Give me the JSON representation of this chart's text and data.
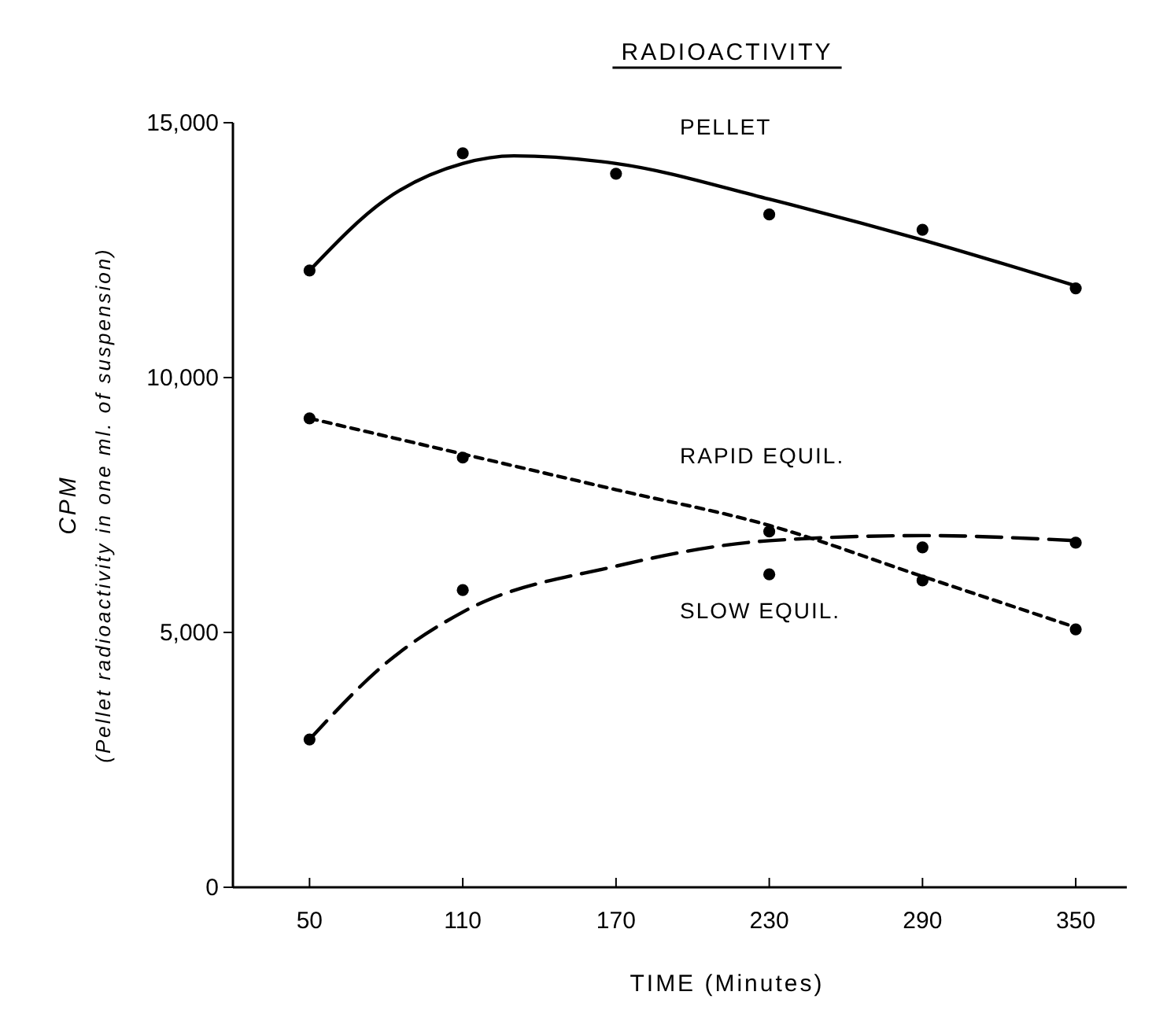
{
  "chart_data": {
    "type": "line",
    "title": "RADIOACTIVITY",
    "xlabel": "TIME  (Minutes)",
    "ylabel": "CPM\n(Pellet radioactivity in one ml. of suspension)",
    "xlim": [
      20,
      370
    ],
    "xticks": [
      50,
      110,
      170,
      230,
      290,
      350
    ],
    "ylim": [
      0,
      15000
    ],
    "yticks": [
      0,
      {
        "value": 5000,
        "label": "5,000"
      },
      {
        "value": 10000,
        "label": "10,000"
      },
      {
        "value": 15000,
        "label": "15,000"
      }
    ],
    "grid": false,
    "series": [
      {
        "name": "PELLET",
        "color": "#000000",
        "line_style": "solid",
        "marker": "none",
        "x": [
          50,
          80,
          110,
          130,
          170,
          230,
          290,
          350
        ],
        "values": [
          12100,
          13500,
          14200,
          14350,
          14200,
          13500,
          12700,
          11800
        ]
      },
      {
        "name": "RAPID EQUIL.",
        "color": "#000000",
        "line_style": "dotted",
        "marker": "none",
        "x": [
          50,
          110,
          170,
          230,
          290,
          350
        ],
        "values": [
          9200,
          8500,
          7800,
          7100,
          6100,
          5100
        ]
      },
      {
        "name": "SLOW EQUIL.",
        "color": "#000000",
        "line_style": "dashed",
        "marker": "none",
        "x": [
          50,
          80,
          110,
          170,
          230,
          290,
          350
        ],
        "values": [
          2900,
          4400,
          5400,
          6300,
          6800,
          6900,
          6800
        ]
      },
      {
        "type": "scatter",
        "color": "#000000",
        "marker": "circle",
        "x": [
          50,
          110,
          170,
          230,
          290,
          350
        ],
        "values": [
          12100,
          14400,
          14000,
          13200,
          12900,
          11750
        ]
      },
      {
        "type": "scatter",
        "color": "#000000",
        "marker": "circle",
        "x": [
          50,
          110,
          230,
          290,
          350
        ],
        "values": [
          9200,
          8430,
          6980,
          6020,
          5060
        ]
      },
      {
        "type": "scatter",
        "color": "#000000",
        "marker": "circle",
        "x": [
          50,
          110,
          230,
          290,
          350
        ],
        "values": [
          2900,
          5830,
          6140,
          6670,
          6760
        ]
      }
    ]
  }
}
